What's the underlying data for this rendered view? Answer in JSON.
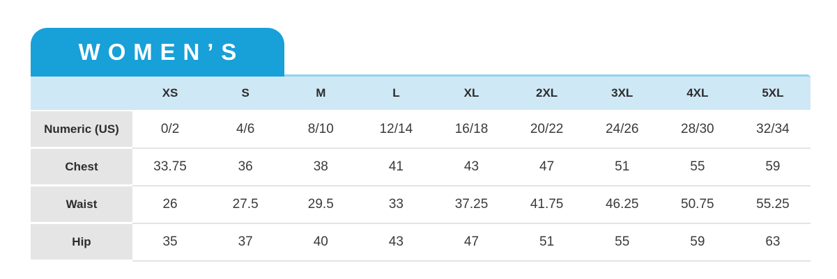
{
  "tab": {
    "label": "WOMEN’S"
  },
  "theme": {
    "tab-blue": "#18a0d8",
    "header-bg": "#cfe8f6",
    "header-border": "#8fd3ee",
    "label-bg": "#e5e5e6",
    "divider": "#e4e4e4",
    "text-dark": "#2d2d2d"
  },
  "chart_data": {
    "type": "table",
    "title": "WOMEN’S",
    "size_columns": [
      "XS",
      "S",
      "M",
      "L",
      "XL",
      "2XL",
      "3XL",
      "4XL",
      "5XL"
    ],
    "rows": [
      {
        "label": "Numeric (US)",
        "values": [
          "0/2",
          "4/6",
          "8/10",
          "12/14",
          "16/18",
          "20/22",
          "24/26",
          "28/30",
          "32/34"
        ]
      },
      {
        "label": "Chest",
        "values": [
          "33.75",
          "36",
          "38",
          "41",
          "43",
          "47",
          "51",
          "55",
          "59"
        ]
      },
      {
        "label": "Waist",
        "values": [
          "26",
          "27.5",
          "29.5",
          "33",
          "37.25",
          "41.75",
          "46.25",
          "50.75",
          "55.25"
        ]
      },
      {
        "label": "Hip",
        "values": [
          "35",
          "37",
          "40",
          "43",
          "47",
          "51",
          "55",
          "59",
          "63"
        ]
      }
    ]
  }
}
